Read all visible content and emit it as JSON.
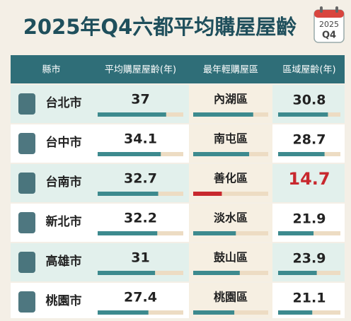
{
  "header": {
    "title": "2025年Q4六都平均購屋屋齡",
    "badge_year": "2025",
    "badge_quarter": "Q4"
  },
  "table": {
    "columns": [
      "縣市",
      "平均購屋屋齡(年)",
      "最年輕購屋區",
      "區域屋齡(年)"
    ],
    "rows": [
      {
        "city": "台北市",
        "avg_age": 37,
        "district": "內湖區",
        "district_age": 30.8,
        "highlight": false
      },
      {
        "city": "台中市",
        "avg_age": 34.1,
        "district": "南屯區",
        "district_age": 28.7,
        "highlight": false
      },
      {
        "city": "台南市",
        "avg_age": 32.7,
        "district": "善化區",
        "district_age": 14.7,
        "highlight": true
      },
      {
        "city": "新北市",
        "avg_age": 32.2,
        "district": "淡水區",
        "district_age": 21.9,
        "highlight": false
      },
      {
        "city": "高雄市",
        "avg_age": 31,
        "district": "鼓山區",
        "district_age": 23.9,
        "highlight": false
      },
      {
        "city": "桃園市",
        "avg_age": 27.4,
        "district": "桃園區",
        "district_age": 21.1,
        "highlight": false
      }
    ],
    "bar_color": "#3d8a8e",
    "track_color": "#eddcc3",
    "highlight_color": "#c8282e"
  }
}
